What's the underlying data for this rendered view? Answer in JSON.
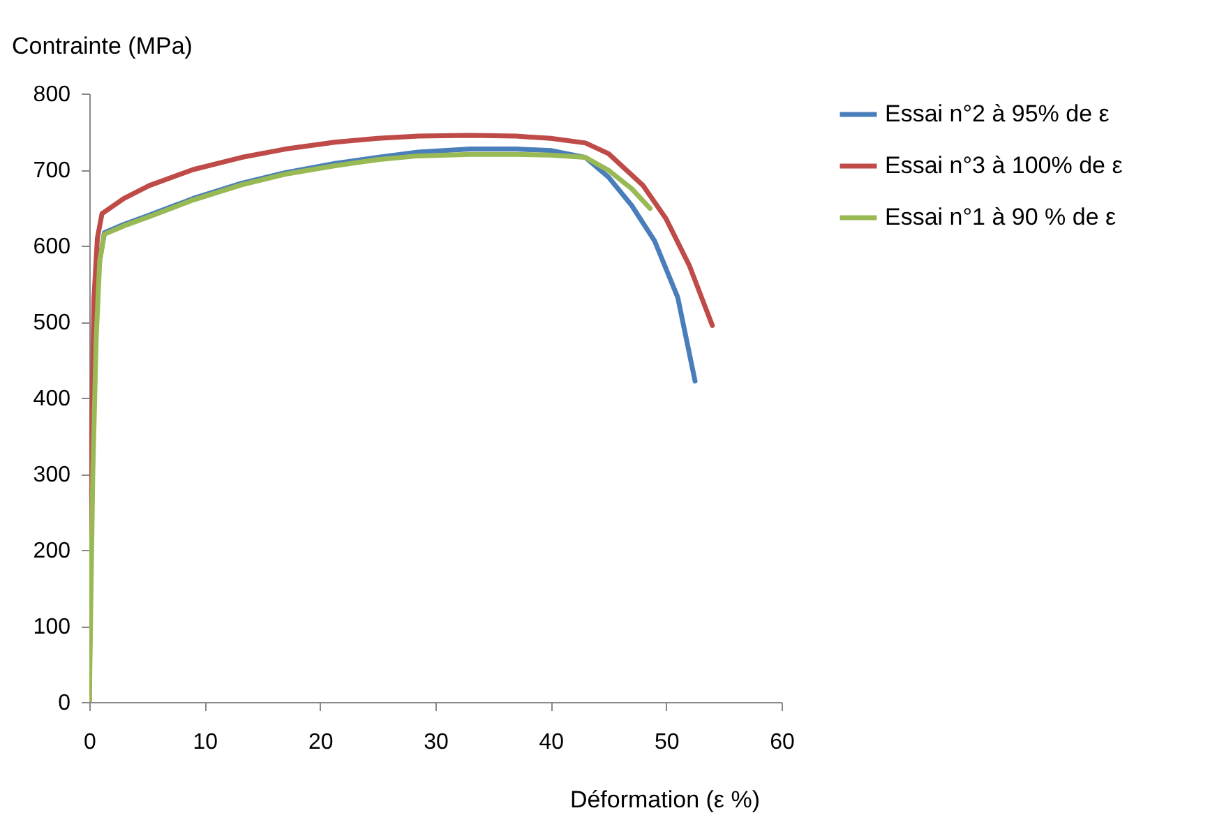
{
  "chart_data": {
    "type": "line",
    "xlabel": "Déformation (ε %)",
    "ylabel": "Contrainte (MPa)",
    "xlim": [
      0,
      60
    ],
    "xticks": [
      0,
      10,
      20,
      30,
      40,
      50,
      60
    ],
    "ylim": [
      0,
      800
    ],
    "yticks": [
      0,
      100,
      200,
      300,
      400,
      500,
      600,
      700,
      800
    ],
    "grid": false,
    "legend": "right",
    "marker": "none",
    "line_style": "solid",
    "series": [
      {
        "name": "Essai n°2 à 95% de ε",
        "color": "#4a7ebb",
        "x": [
          0.9,
          1.3,
          3,
          5.2,
          9,
          13.2,
          17,
          21.3,
          25,
          28.5,
          33,
          37,
          40,
          43,
          45,
          47,
          49,
          51,
          52.5
        ],
        "values": [
          580,
          617,
          628,
          640,
          662,
          682,
          696,
          708,
          716,
          723,
          727,
          727,
          725,
          716,
          690,
          653,
          606,
          532,
          422
        ]
      },
      {
        "name": "Essai n°3 à 100% de ε",
        "color": "#be4b48",
        "x": [
          0,
          0.2,
          0.4,
          0.7,
          1.1,
          3,
          5.2,
          9,
          13.2,
          17,
          21.3,
          25,
          28.5,
          33,
          37,
          40,
          43,
          45,
          48,
          50,
          52,
          54
        ],
        "values": [
          0,
          350,
          530,
          610,
          642,
          662,
          679,
          700,
          716,
          727,
          736,
          741,
          744,
          745,
          744,
          741,
          735,
          721,
          679,
          635,
          574,
          495
        ]
      },
      {
        "name": "Essai n°1 à 90 % de ε",
        "color": "#98b954",
        "x": [
          0,
          0.3,
          0.6,
          0.9,
          1.3,
          3,
          5.2,
          9,
          13.2,
          17,
          21.3,
          25,
          28.5,
          33,
          37,
          40,
          43,
          45,
          47,
          48.6
        ],
        "values": [
          0,
          300,
          480,
          580,
          615,
          626,
          638,
          660,
          680,
          694,
          705,
          713,
          718,
          720,
          720,
          719,
          716,
          699,
          675,
          649
        ]
      }
    ]
  }
}
